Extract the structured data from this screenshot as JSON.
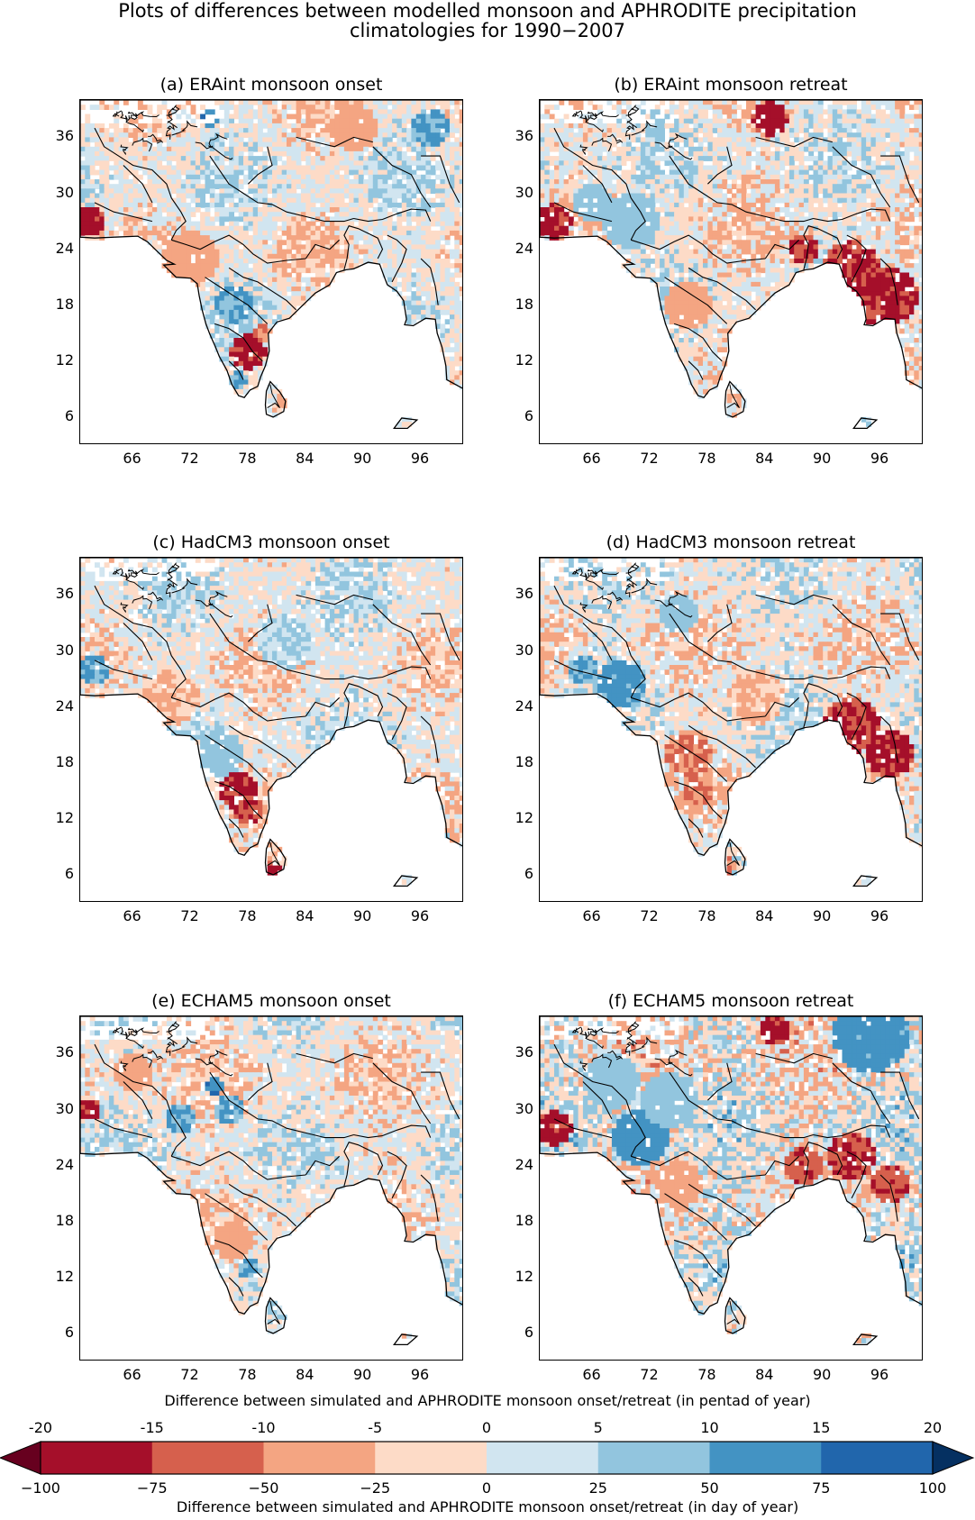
{
  "chart_data": {
    "type": "heatmap",
    "title_line1": "Plots of differences between modelled monsoon and APHRODITE precipitation",
    "title_line2": "climatologies for 1990−2007",
    "panels": [
      {
        "title": "(a)  ERAint monsoon onset"
      },
      {
        "title": "(b)  ERAint monsoon retreat"
      },
      {
        "title": "(c)  HadCM3 monsoon onset"
      },
      {
        "title": "(d)  HadCM3 monsoon retreat"
      },
      {
        "title": "(e)  ECHAM5 monsoon onset"
      },
      {
        "title": "(f)  ECHAM5 monsoon retreat"
      }
    ],
    "x_ticks": [
      "66",
      "72",
      "78",
      "84",
      "90",
      "96"
    ],
    "y_ticks": [
      "36",
      "30",
      "24",
      "18",
      "12",
      "6"
    ],
    "xlim": [
      60.5,
      100.5
    ],
    "ylim": [
      3,
      40
    ],
    "colorbar": {
      "top_label": "Difference between simulated and APHRODITE monsoon onset/retreat (in pentad of year)",
      "bottom_label": "Difference between simulated and APHRODITE monsoon onset/retreat (in day of year)",
      "pentad_ticks": [
        "-20",
        "-15",
        "-10",
        "-5",
        "0",
        "5",
        "10",
        "15",
        "20"
      ],
      "day_ticks": [
        "−100",
        "−75",
        "−50",
        "−25",
        "0",
        "25",
        "50",
        "75",
        "100"
      ],
      "levels": [
        -100,
        -75,
        -50,
        -25,
        0,
        25,
        50,
        75,
        100
      ],
      "colors": [
        "#67001f",
        "#a50f2a",
        "#d6604d",
        "#f4a582",
        "#fddbc7",
        "#d1e5f0",
        "#92c5de",
        "#4393c3",
        "#2166ac",
        "#053061"
      ]
    }
  }
}
